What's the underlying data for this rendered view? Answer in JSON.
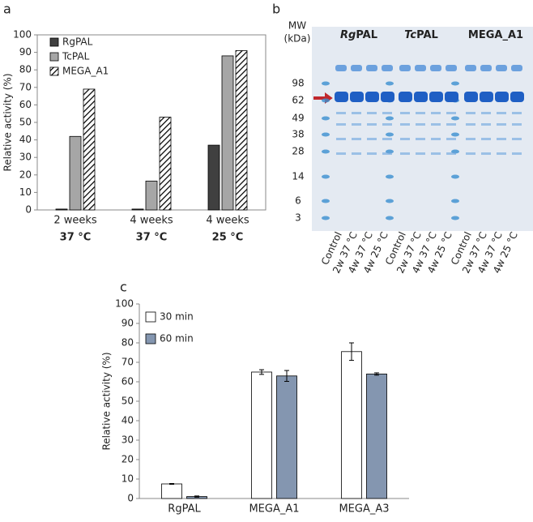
{
  "panels": [
    "a",
    "b",
    "c"
  ],
  "chart_data": [
    {
      "type": "bar",
      "ylabel": "Relative activity (%)",
      "categories": [
        "2 weeks",
        "4 weeks",
        "4 weeks"
      ],
      "category_sublabels": [
        "37 °C",
        "37 °C",
        "25 °C"
      ],
      "ylim": [
        0,
        100
      ],
      "yticks": [
        0,
        10,
        20,
        30,
        40,
        50,
        60,
        70,
        80,
        90,
        100
      ],
      "legend": "top-left",
      "series": [
        {
          "name": "RgPAL",
          "color": "#404040",
          "values": [
            0.5,
            0.5,
            37
          ]
        },
        {
          "name": "TcPAL",
          "color": "#a6a6a6",
          "values": [
            42,
            16.5,
            88
          ]
        },
        {
          "name": "MEGA_A1",
          "color": "#ffffff",
          "pattern": "hatch",
          "values": [
            69,
            53,
            91
          ]
        }
      ]
    },
    {
      "type": "bar",
      "ylabel": "Relative activity (%)",
      "categories": [
        "RgPAL",
        "MEGA_A1",
        "MEGA_A3"
      ],
      "ylim": [
        0,
        100
      ],
      "yticks": [
        0,
        10,
        20,
        30,
        40,
        50,
        60,
        70,
        80,
        90,
        100
      ],
      "legend": "top-left",
      "series": [
        {
          "name": "30 min",
          "color": "#ffffff",
          "values": [
            7.5,
            65,
            75.5
          ],
          "errors": [
            0.2,
            1.2,
            4.5
          ]
        },
        {
          "name": "60 min",
          "color": "#8496b0",
          "values": [
            1,
            63,
            64
          ],
          "errors": [
            0.3,
            2.8,
            0.6
          ]
        }
      ]
    }
  ],
  "gel": {
    "mw_title": "MW",
    "mw_unit": "(kDa)",
    "markers": [
      "98",
      "62",
      "49",
      "38",
      "28",
      "14",
      "6",
      "3"
    ],
    "groups": [
      {
        "italic": "Rg",
        "plain": "PAL",
        "lanes": [
          "Control",
          "2w 37 °C",
          "4w 37 °C",
          "4w 25 °C"
        ]
      },
      {
        "italic": "Tc",
        "plain": "PAL",
        "lanes": [
          "Control",
          "2w 37 °C",
          "4w 37 °C",
          "4w 25 °C"
        ]
      },
      {
        "plain": "MEGA_A1",
        "lanes": [
          "Control",
          "2w 37 °C",
          "4w 37 °C",
          "4w 25 °C"
        ]
      }
    ]
  }
}
